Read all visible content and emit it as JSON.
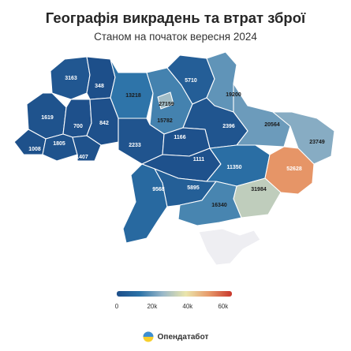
{
  "title": "Географія викрадень та втрат зброї",
  "subtitle": "Станом на початок вересня 2024",
  "legend": {
    "ticks": [
      "0",
      "20k",
      "40k",
      "60k"
    ],
    "tick_values": [
      0,
      20000,
      40000,
      60000
    ],
    "range": [
      0,
      65000
    ],
    "colors": [
      "#1d4e89",
      "#2c73a8",
      "#9ab8c9",
      "#ebe6ac",
      "#e79a6a",
      "#c8372c"
    ]
  },
  "regions": [
    {
      "id": "volyn",
      "value": 3163
    },
    {
      "id": "rivne",
      "value": 348
    },
    {
      "id": "zhytomyr",
      "value": 13218
    },
    {
      "id": "kyiv-city",
      "value": 27159
    },
    {
      "id": "kyiv-oblast",
      "value": 15782
    },
    {
      "id": "chernihiv",
      "value": 5710
    },
    {
      "id": "sumy",
      "value": 19200
    },
    {
      "id": "lviv",
      "value": 1619
    },
    {
      "id": "ternopil",
      "value": 700
    },
    {
      "id": "khmelnytskyi",
      "value": 842
    },
    {
      "id": "kharkiv",
      "value": 20564
    },
    {
      "id": "poltava",
      "value": 2396
    },
    {
      "id": "luhansk",
      "value": 23749
    },
    {
      "id": "zakarpattia",
      "value": 1008
    },
    {
      "id": "ivano-frankivsk",
      "value": 1805
    },
    {
      "id": "chernivtsi",
      "value": 1407
    },
    {
      "id": "vinnytsia",
      "value": 2233
    },
    {
      "id": "cherkasy",
      "value": 1166
    },
    {
      "id": "kirovohrad",
      "value": 1111
    },
    {
      "id": "dnipropetrovsk",
      "value": 11350
    },
    {
      "id": "donetsk",
      "value": 52628
    },
    {
      "id": "odesa",
      "value": 9568
    },
    {
      "id": "mykolaiv",
      "value": 5895
    },
    {
      "id": "zaporizhzhia",
      "value": 31984
    },
    {
      "id": "kherson",
      "value": 16340
    },
    {
      "id": "crimea",
      "value": null
    }
  ],
  "labels": {
    "volyn": "3163",
    "rivne": "348",
    "zhytomyr": "13218",
    "kyiv-city": "27159",
    "kyiv-oblast": "15782",
    "chernihiv": "5710",
    "sumy": "19200",
    "lviv": "1619",
    "ternopil": "700",
    "khmelnytskyi": "842",
    "kharkiv": "20564",
    "poltava": "2396",
    "luhansk": "23749",
    "zakarpattia": "1008",
    "ivano-frankivsk": "1805",
    "chernivtsi": "1407",
    "vinnytsia": "2233",
    "cherkasy": "1166",
    "kirovohrad": "1111",
    "dnipropetrovsk": "11350",
    "donetsk": "52628",
    "odesa": "9568",
    "mykolaiv": "5895",
    "zaporizhzhia": "31984",
    "kherson": "16340"
  },
  "no_data_color": "#eeeef2",
  "brand": {
    "name": "Опендатабот"
  }
}
